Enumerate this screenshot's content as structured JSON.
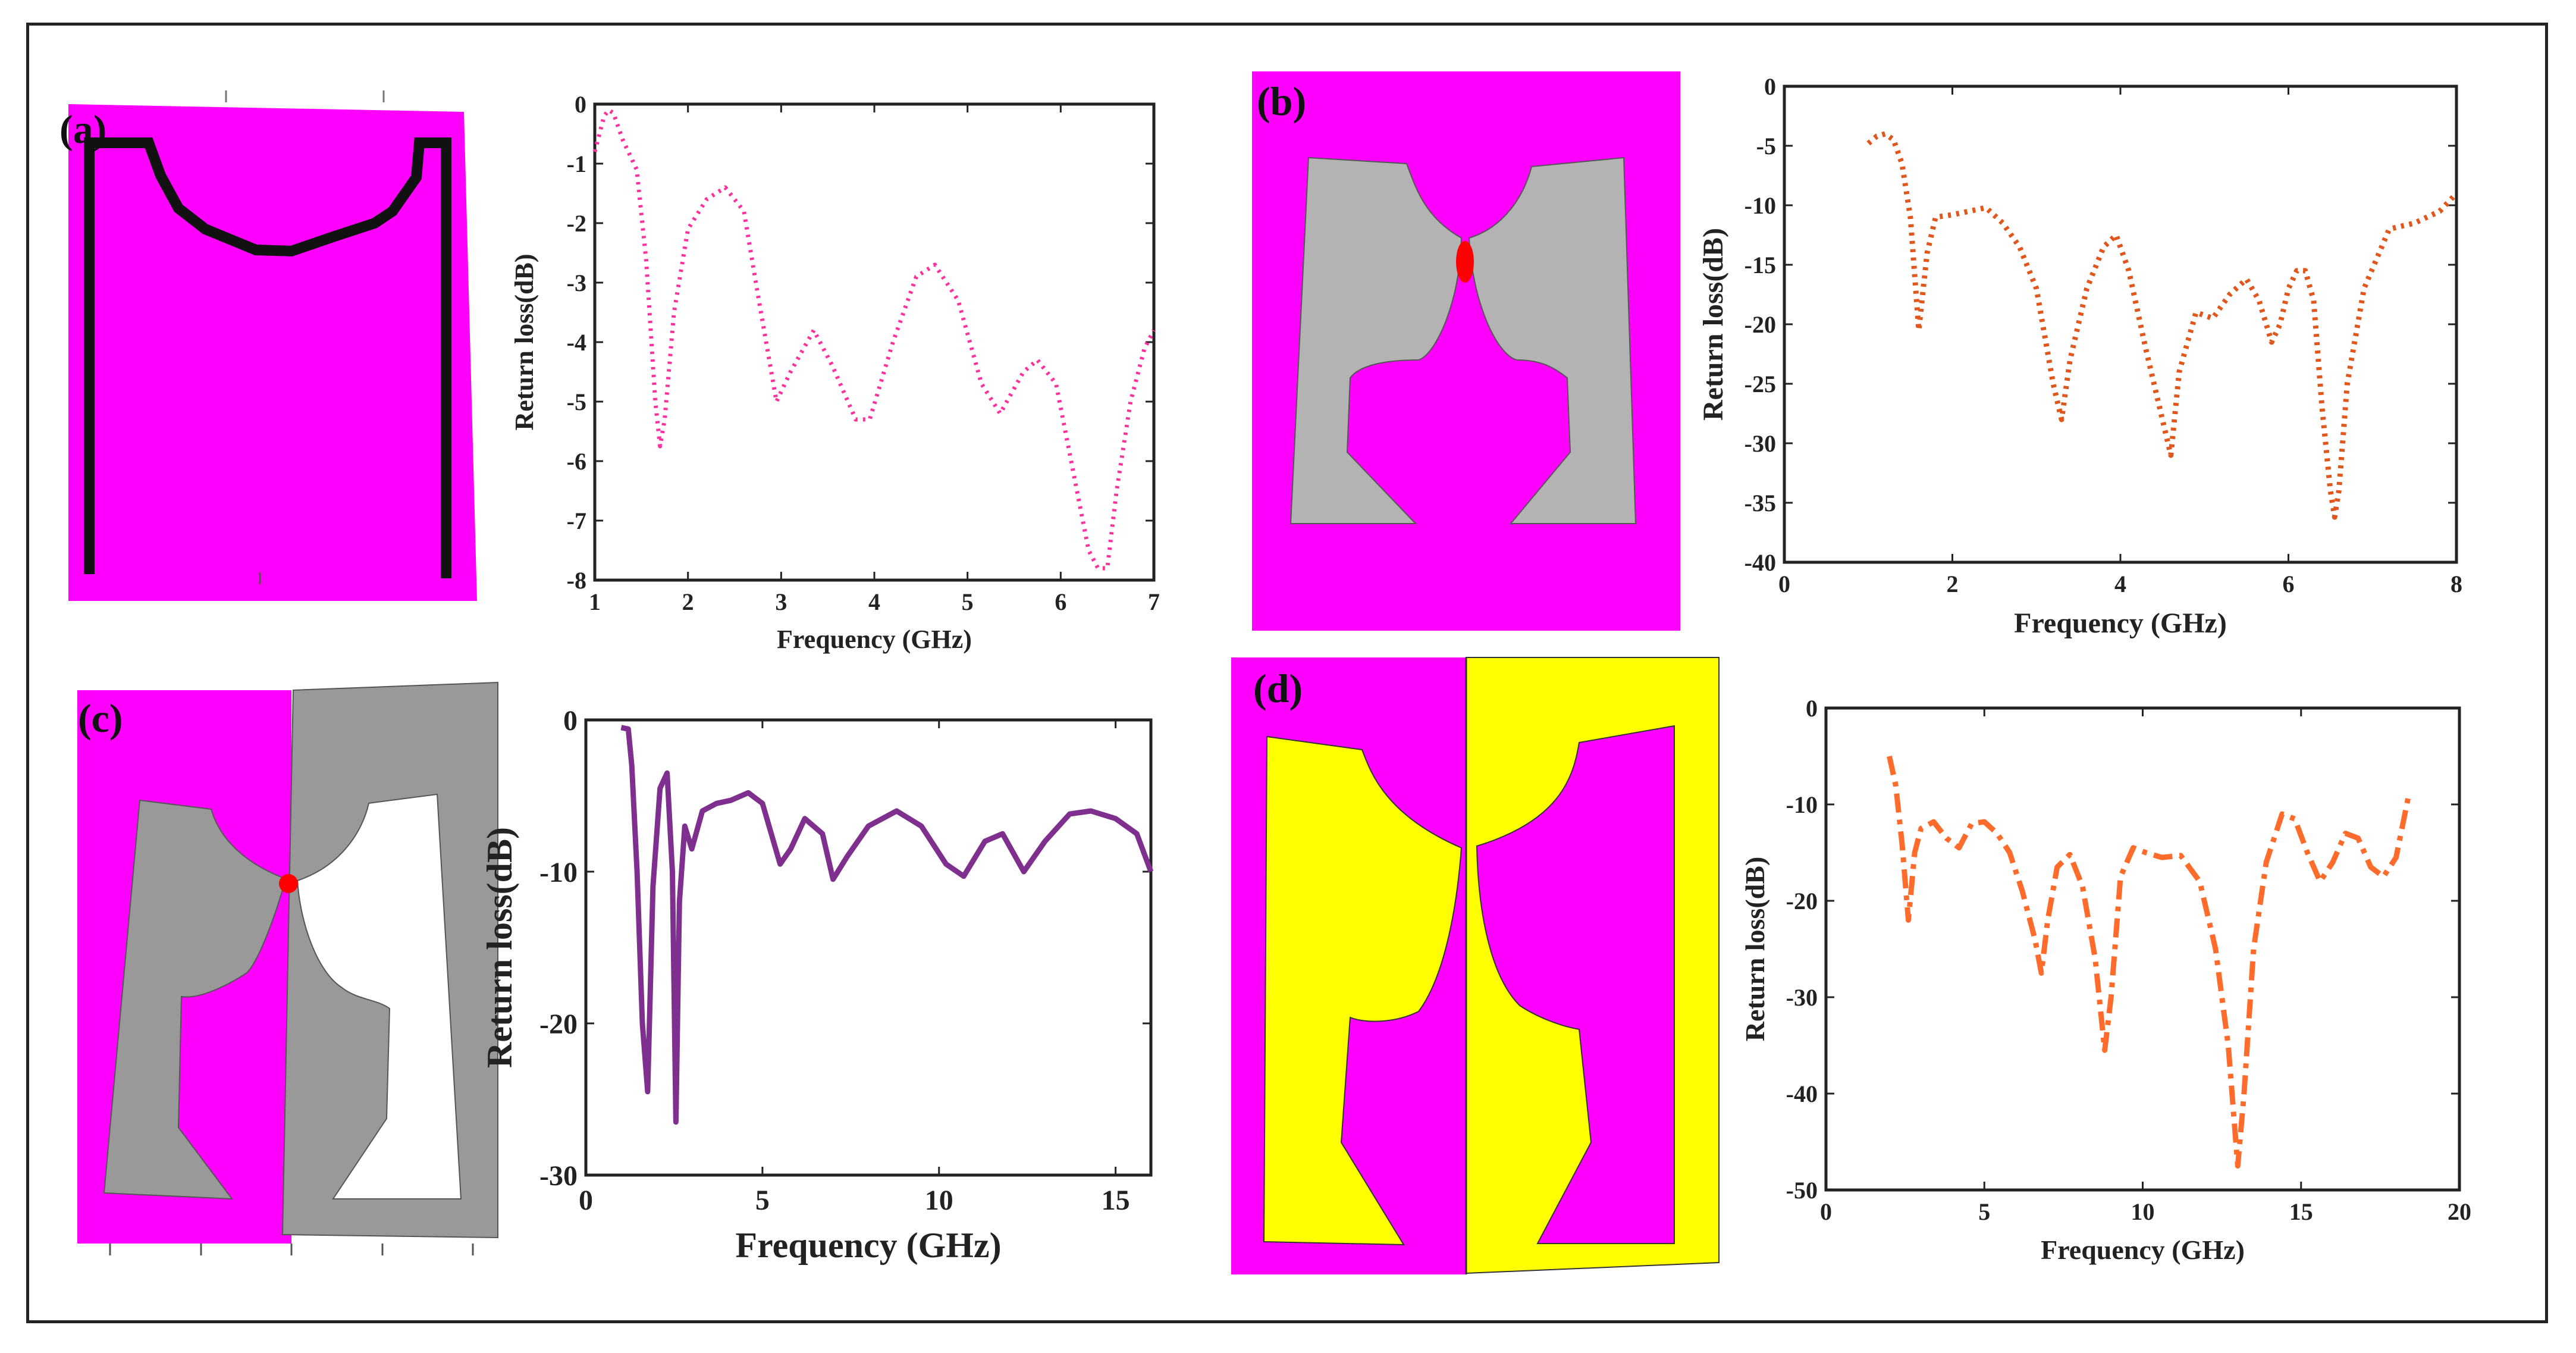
{
  "panel_labels": [
    "(a)",
    "(b)",
    "(c)",
    "(d)"
  ],
  "colors": {
    "substrate": "#ff00ff",
    "patch_gray": "#b3b3b3",
    "patch_dark": "#999999",
    "yellow": "#ffff00",
    "feed": "#ff0000",
    "curve_a": "#ff2f9e",
    "curve_b": "#e0561b",
    "curve_c": "#7f2f8e",
    "curve_d": "#ff6b2b"
  },
  "chart_data": [
    {
      "type": "line",
      "panel": "(a)",
      "xlabel": "Frequency (GHz)",
      "ylabel": "Return loss(dB)",
      "xlim": [
        1,
        7
      ],
      "ylim": [
        -8,
        0
      ],
      "xticks": [
        1,
        2,
        3,
        4,
        5,
        6,
        7
      ],
      "yticks": [
        0,
        -1,
        -2,
        -3,
        -4,
        -5,
        -6,
        -7,
        -8
      ],
      "line_style": "dotted",
      "x": [
        1.0,
        1.1,
        1.15,
        1.2,
        1.3,
        1.45,
        1.55,
        1.65,
        1.7,
        1.75,
        1.85,
        2.0,
        2.2,
        2.4,
        2.6,
        2.75,
        2.95,
        3.1,
        3.35,
        3.55,
        3.8,
        3.95,
        4.2,
        4.45,
        4.65,
        4.9,
        5.15,
        5.35,
        5.6,
        5.75,
        5.95,
        6.15,
        6.3,
        6.4,
        6.5,
        6.6,
        6.75,
        6.9,
        7.0
      ],
      "y": [
        -0.8,
        -0.2,
        -0.1,
        -0.15,
        -0.6,
        -1.1,
        -2.6,
        -5.0,
        -5.75,
        -5.3,
        -3.5,
        -2.1,
        -1.6,
        -1.4,
        -1.8,
        -3.2,
        -5.0,
        -4.5,
        -3.8,
        -4.4,
        -5.3,
        -5.3,
        -4.0,
        -2.9,
        -2.7,
        -3.3,
        -4.7,
        -5.2,
        -4.5,
        -4.3,
        -4.7,
        -6.3,
        -7.5,
        -7.8,
        -7.8,
        -6.5,
        -5.0,
        -4.1,
        -3.8
      ]
    },
    {
      "type": "line",
      "panel": "(b)",
      "xlabel": "Frequency (GHz)",
      "ylabel": "Return loss(dB)",
      "xlim": [
        0,
        8
      ],
      "ylim": [
        -40,
        0
      ],
      "xticks": [
        0,
        2,
        4,
        6,
        8
      ],
      "yticks": [
        0,
        -5,
        -10,
        -15,
        -20,
        -25,
        -30,
        -35,
        -40
      ],
      "line_style": "dotted",
      "x": [
        1.0,
        1.1,
        1.2,
        1.3,
        1.4,
        1.5,
        1.6,
        1.7,
        1.8,
        2.0,
        2.2,
        2.4,
        2.6,
        2.8,
        3.0,
        3.2,
        3.3,
        3.4,
        3.6,
        3.8,
        3.95,
        4.1,
        4.3,
        4.5,
        4.6,
        4.7,
        4.9,
        5.1,
        5.3,
        5.5,
        5.65,
        5.8,
        5.9,
        6.0,
        6.1,
        6.2,
        6.3,
        6.4,
        6.5,
        6.55,
        6.6,
        6.7,
        6.9,
        7.2,
        7.5,
        7.8,
        8.0
      ],
      "y": [
        -4.8,
        -4.2,
        -4.0,
        -4.5,
        -6.5,
        -11.0,
        -20.5,
        -14.0,
        -11.0,
        -10.8,
        -10.5,
        -10.2,
        -11.5,
        -13.5,
        -17.0,
        -25.0,
        -28.0,
        -23.0,
        -17.0,
        -13.5,
        -12.5,
        -15.5,
        -22.0,
        -28.0,
        -31.0,
        -24.0,
        -19.0,
        -19.5,
        -17.5,
        -16.2,
        -18.0,
        -21.5,
        -20.0,
        -17.0,
        -15.5,
        -15.5,
        -18.0,
        -27.0,
        -34.0,
        -36.2,
        -34.0,
        -25.0,
        -17.0,
        -12.0,
        -11.5,
        -10.5,
        -9.0
      ]
    },
    {
      "type": "line",
      "panel": "(c)",
      "xlabel": "Frequency (GHz)",
      "ylabel": "Return loss(dB)",
      "xlim": [
        0,
        16
      ],
      "ylim": [
        -30,
        0
      ],
      "xticks": [
        0,
        5,
        10,
        15
      ],
      "yticks": [
        0,
        -10,
        -20,
        -30
      ],
      "line_style": "solid",
      "x": [
        1.0,
        1.2,
        1.3,
        1.45,
        1.6,
        1.75,
        1.9,
        2.1,
        2.3,
        2.45,
        2.55,
        2.65,
        2.8,
        3.0,
        3.3,
        3.7,
        4.1,
        4.6,
        5.0,
        5.5,
        5.8,
        6.2,
        6.7,
        7.0,
        7.4,
        8.0,
        8.8,
        9.5,
        10.2,
        10.7,
        11.3,
        11.8,
        12.4,
        13.0,
        13.7,
        14.3,
        15.0,
        15.6,
        16.0
      ],
      "y": [
        -0.5,
        -0.6,
        -3.0,
        -10.0,
        -20.0,
        -24.5,
        -11.0,
        -4.5,
        -3.5,
        -10.0,
        -26.5,
        -12.0,
        -7.0,
        -8.5,
        -6.0,
        -5.5,
        -5.3,
        -4.8,
        -5.5,
        -9.5,
        -8.5,
        -6.5,
        -7.5,
        -10.5,
        -9.0,
        -7.0,
        -6.0,
        -7.0,
        -9.5,
        -10.3,
        -8.0,
        -7.5,
        -10.0,
        -8.0,
        -6.2,
        -6.0,
        -6.5,
        -7.5,
        -10.0
      ]
    },
    {
      "type": "line",
      "panel": "(d)",
      "xlabel": "Frequency (GHz)",
      "ylabel": "Return loss(dB)",
      "xlim": [
        0,
        20
      ],
      "ylim": [
        -50,
        0
      ],
      "xticks": [
        0,
        5,
        10,
        15,
        20
      ],
      "yticks": [
        0,
        -10,
        -20,
        -30,
        -40,
        -50
      ],
      "line_style": "dashdot",
      "x": [
        2.0,
        2.2,
        2.4,
        2.6,
        2.8,
        3.0,
        3.4,
        3.8,
        4.2,
        4.6,
        5.0,
        5.4,
        5.8,
        6.2,
        6.6,
        6.8,
        7.0,
        7.3,
        7.7,
        8.1,
        8.5,
        8.8,
        9.0,
        9.3,
        9.7,
        10.1,
        10.6,
        11.2,
        11.8,
        12.3,
        12.7,
        13.0,
        13.2,
        13.5,
        13.9,
        14.4,
        14.8,
        15.2,
        15.6,
        16.0,
        16.4,
        16.8,
        17.2,
        17.6,
        18.0,
        18.4
      ],
      "y": [
        -5.0,
        -8.0,
        -14.0,
        -22.0,
        -15.0,
        -12.5,
        -11.8,
        -13.5,
        -14.5,
        -12.0,
        -11.8,
        -13.0,
        -15.0,
        -19.0,
        -24.0,
        -27.5,
        -22.0,
        -16.5,
        -15.2,
        -18.5,
        -26.0,
        -35.5,
        -30.0,
        -17.5,
        -14.5,
        -15.0,
        -15.5,
        -15.3,
        -18.0,
        -25.0,
        -35.0,
        -47.5,
        -40.0,
        -25.0,
        -16.0,
        -11.0,
        -11.5,
        -15.0,
        -18.0,
        -16.0,
        -13.0,
        -13.5,
        -16.5,
        -17.5,
        -15.5,
        -9.0
      ]
    }
  ]
}
